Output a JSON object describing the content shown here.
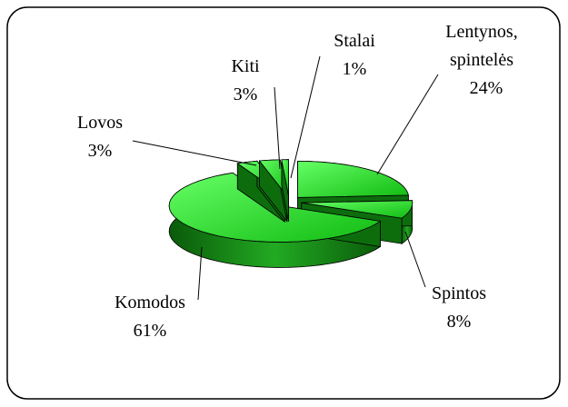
{
  "chart_data": {
    "type": "pie3d",
    "categories": [
      "Lentynos, spintelės",
      "Spintos",
      "Komodos",
      "Lovos",
      "Kiti",
      "Stalai"
    ],
    "values": [
      24,
      8,
      61,
      3,
      3,
      1
    ],
    "value_labels": [
      "24%",
      "8%",
      "61%",
      "3%",
      "3%",
      "1%"
    ],
    "color": "#22dd22"
  }
}
